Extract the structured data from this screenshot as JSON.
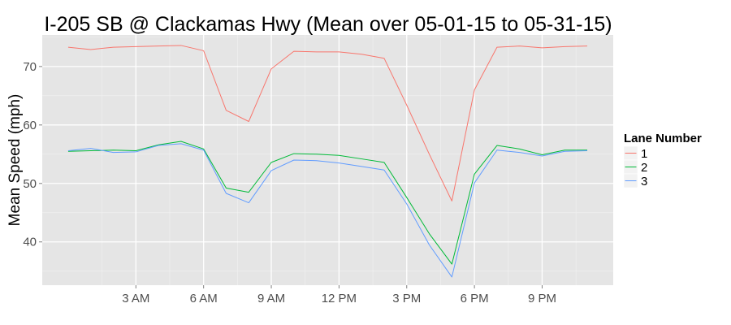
{
  "chart_data": {
    "type": "line",
    "title": "I-205 SB @ Clackamas Hwy (Mean over 05-01-15 to 05-31-15)",
    "xlabel": "",
    "ylabel": "Mean Speed (mph)",
    "x": [
      0,
      1,
      2,
      3,
      4,
      5,
      6,
      7,
      8,
      9,
      10,
      11,
      12,
      13,
      14,
      15,
      16,
      17,
      18,
      19,
      20,
      21,
      22,
      23
    ],
    "xlim": [
      -1.15,
      24.15
    ],
    "ylim": [
      32.6,
      75.4
    ],
    "x_ticks": [
      {
        "value": 3,
        "label": "3 AM"
      },
      {
        "value": 6,
        "label": "6 AM"
      },
      {
        "value": 9,
        "label": "9 AM"
      },
      {
        "value": 12,
        "label": "12 PM"
      },
      {
        "value": 15,
        "label": "3 PM"
      },
      {
        "value": 18,
        "label": "6 PM"
      },
      {
        "value": 21,
        "label": "9 PM"
      }
    ],
    "y_ticks": [
      40,
      50,
      60,
      70
    ],
    "grid": true,
    "legend": {
      "title": "Lane Number",
      "position": "right"
    },
    "series": [
      {
        "name": "1",
        "color": "#F8766D",
        "values": [
          73.3,
          72.9,
          73.3,
          73.4,
          73.5,
          73.6,
          72.7,
          62.5,
          60.6,
          69.6,
          72.6,
          72.5,
          72.5,
          72.1,
          71.4,
          63.4,
          55.0,
          47.0,
          66.0,
          73.3,
          73.5,
          73.2,
          73.4,
          73.5
        ]
      },
      {
        "name": "2",
        "color": "#00BA38",
        "values": [
          55.5,
          55.6,
          55.7,
          55.6,
          56.6,
          57.2,
          55.9,
          49.2,
          48.5,
          53.6,
          55.1,
          55.0,
          54.8,
          54.2,
          53.6,
          47.6,
          41.4,
          36.2,
          51.6,
          56.5,
          55.9,
          54.9,
          55.7,
          55.7
        ]
      },
      {
        "name": "3",
        "color": "#619CFF",
        "values": [
          55.6,
          56.0,
          55.3,
          55.4,
          56.5,
          56.8,
          55.7,
          48.3,
          46.7,
          52.2,
          54.0,
          53.9,
          53.5,
          52.9,
          52.3,
          46.5,
          39.5,
          34.0,
          50.1,
          55.7,
          55.3,
          54.7,
          55.5,
          55.6
        ]
      }
    ]
  }
}
